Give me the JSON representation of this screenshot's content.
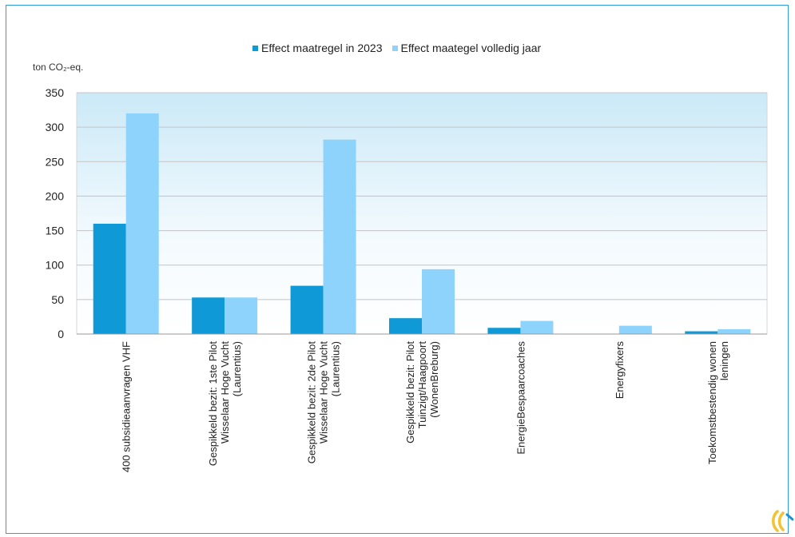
{
  "chart_data": {
    "type": "bar",
    "ylabel": "ton CO₂-eq.",
    "ylim": [
      0,
      350
    ],
    "yticks": [
      0,
      50,
      100,
      150,
      200,
      250,
      300,
      350
    ],
    "grid": true,
    "legend_position": "top",
    "categories": [
      [
        "400 subsidieaanvragen VHF"
      ],
      [
        "Gespikkeld bezit: 1ste Pilot",
        "Wisselaar Hoge Vucht",
        "(Laurentius)"
      ],
      [
        "Gespikkeld bezit: 2de Pilot",
        "Wisselaar Hoge Vucht",
        "(Laurentius)"
      ],
      [
        "Gespikkeld bezit: Pilot",
        "Tuinzigt/Haagpoort",
        "(WonenBreburg)"
      ],
      [
        "EnergieBespaarcoaches"
      ],
      [
        "Energyfixers"
      ],
      [
        "Toekomstbestendig wonen",
        "leningen"
      ]
    ],
    "series": [
      {
        "name": "Effect maatregel in 2023",
        "color": "#0f9ad7",
        "values": [
          160,
          53,
          70,
          23,
          9,
          0,
          4
        ]
      },
      {
        "name": "Effect maategel volledig jaar",
        "color": "#8ed3fb",
        "values": [
          320,
          53,
          282,
          94,
          19,
          12,
          7
        ]
      }
    ]
  },
  "colors": {
    "frame": "#2e9fd6",
    "plot_gradient_top": "#cbe9f7",
    "plot_gradient_bottom": "#ffffff",
    "grid": "#c4c4c4"
  },
  "logo": {
    "icon": "brand-logo-icon"
  }
}
